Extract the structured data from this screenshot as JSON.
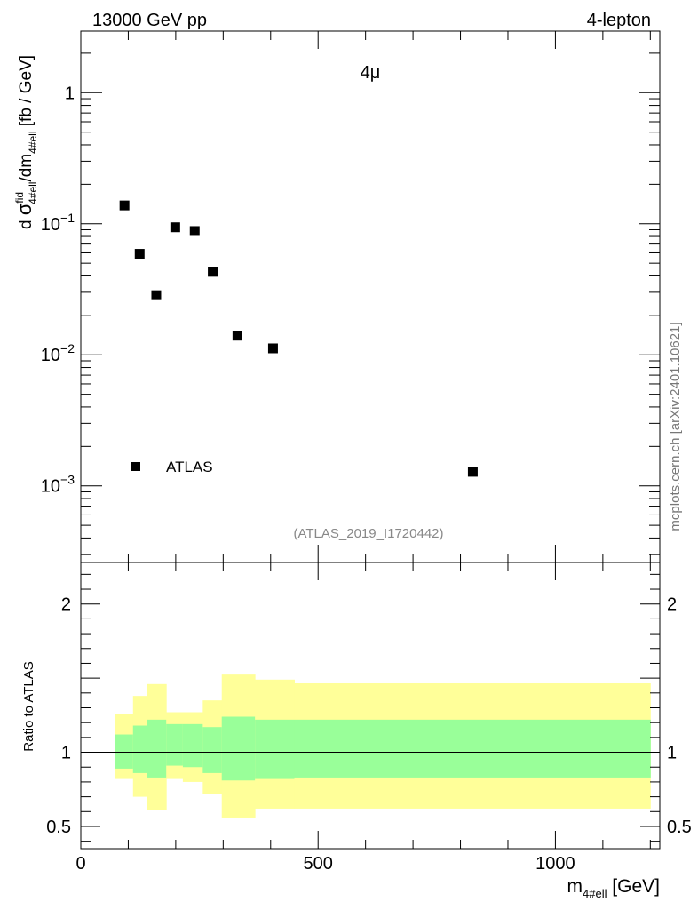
{
  "header": {
    "left": "13000 GeV pp",
    "right": "4-lepton"
  },
  "watermark": "mcplots.cern.ch [arXiv:2401.10621]",
  "chart_data": [
    {
      "type": "scatter",
      "title": "4μ",
      "ylabel_parts": {
        "d": "d ",
        "sigma": "σ",
        "sup": "fid",
        "sub": "4#ell",
        "mid": "/dm",
        "sub2": "4#ell",
        "unit": " [fb / GeV]"
      },
      "xlim": [
        0,
        1220
      ],
      "ylim": [
        0.00026,
        2.95
      ],
      "y_scale": "log",
      "y_ticks": [
        {
          "value": 1,
          "label": "1"
        },
        {
          "value": 0.1,
          "base": "10",
          "exp": "−1"
        },
        {
          "value": 0.01,
          "base": "10",
          "exp": "−2"
        },
        {
          "value": 0.001,
          "base": "10",
          "exp": "−3"
        }
      ],
      "series": [
        {
          "name": "ATLAS",
          "marker": "square",
          "color": "#000000",
          "x": [
            92,
            124,
            159,
            199,
            240,
            278,
            330,
            405,
            826
          ],
          "y": [
            0.138,
            0.059,
            0.0285,
            0.094,
            0.088,
            0.043,
            0.014,
            0.0112,
            0.00128
          ]
        }
      ],
      "reference": "(ATLAS_2019_I1720442)",
      "legend_position": "bottom-left"
    },
    {
      "type": "area",
      "ylabel": "Ratio to ATLAS",
      "xlabel_parts": {
        "m": "m",
        "sub": "4#ell",
        "unit": " [GeV]"
      },
      "xlim": [
        0,
        1220
      ],
      "ylim": [
        0.35,
        2.28
      ],
      "x_ticks": [
        0,
        500,
        1000
      ],
      "y_ticks": [
        0.5,
        1,
        2
      ],
      "reference_line": 1,
      "bands": {
        "edges": [
          72,
          110,
          140,
          180,
          215,
          257,
          297,
          367,
          450,
          1200
        ],
        "inner_low": [
          0.89,
          0.86,
          0.83,
          0.91,
          0.9,
          0.86,
          0.81,
          0.82,
          0.83
        ],
        "inner_high": [
          1.12,
          1.18,
          1.22,
          1.19,
          1.19,
          1.17,
          1.24,
          1.22,
          1.22
        ],
        "outer_low": [
          0.82,
          0.7,
          0.61,
          0.82,
          0.8,
          0.72,
          0.56,
          0.62,
          0.62
        ],
        "outer_high": [
          1.26,
          1.38,
          1.46,
          1.27,
          1.27,
          1.35,
          1.53,
          1.49,
          1.47
        ]
      },
      "band_colors": {
        "outer": "#ffff99",
        "inner": "#99ff99"
      }
    }
  ]
}
